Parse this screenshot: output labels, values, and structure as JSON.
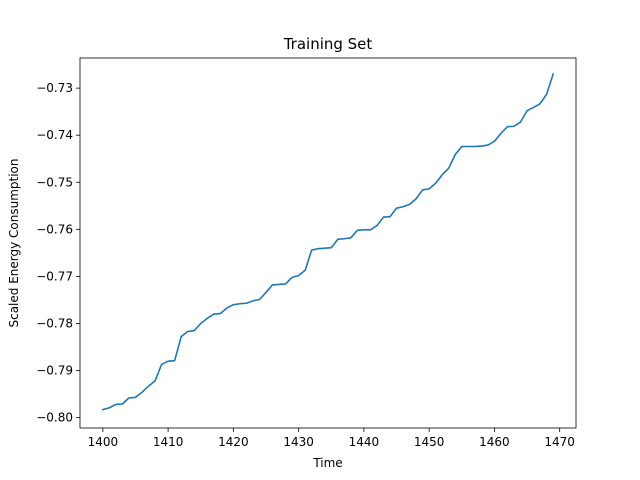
{
  "chart_data": {
    "type": "line",
    "title": "Training Set",
    "xlabel": "Time",
    "ylabel": "Scaled Energy Consumption",
    "xlim": [
      1396.5,
      1472.5
    ],
    "ylim": [
      -0.8022,
      -0.7236
    ],
    "xticks": [
      1400,
      1410,
      1420,
      1430,
      1440,
      1450,
      1460,
      1470
    ],
    "yticks": [
      -0.8,
      -0.79,
      -0.78,
      -0.77,
      -0.76,
      -0.75,
      -0.74,
      -0.73
    ],
    "xtick_labels": [
      "1400",
      "1410",
      "1420",
      "1430",
      "1440",
      "1450",
      "1460",
      "1470"
    ],
    "ytick_labels": [
      "−0.80",
      "−0.79",
      "−0.78",
      "−0.77",
      "−0.76",
      "−0.75",
      "−0.74",
      "−0.73"
    ],
    "grid": false,
    "series": [
      {
        "color": "#1f77b4",
        "x": [
          1400,
          1401,
          1402,
          1403,
          1404,
          1405,
          1406,
          1407,
          1408,
          1409,
          1410,
          1411,
          1412,
          1413,
          1414,
          1415,
          1416,
          1417,
          1418,
          1419,
          1420,
          1421,
          1422,
          1423,
          1424,
          1425,
          1426,
          1427,
          1428,
          1429,
          1430,
          1431,
          1432,
          1433,
          1434,
          1435,
          1436,
          1437,
          1438,
          1439,
          1440,
          1441,
          1442,
          1443,
          1444,
          1445,
          1446,
          1447,
          1448,
          1449,
          1450,
          1451,
          1452,
          1453,
          1454,
          1455,
          1456,
          1457,
          1458,
          1459,
          1460,
          1461,
          1462,
          1463,
          1464,
          1465,
          1466,
          1467,
          1468,
          1469
        ],
        "y": [
          -0.7983,
          -0.7979,
          -0.7972,
          -0.7971,
          -0.7958,
          -0.7957,
          -0.7946,
          -0.7933,
          -0.7922,
          -0.7887,
          -0.788,
          -0.7879,
          -0.7828,
          -0.7817,
          -0.7815,
          -0.78,
          -0.7789,
          -0.778,
          -0.7779,
          -0.7767,
          -0.776,
          -0.7758,
          -0.7757,
          -0.7752,
          -0.7749,
          -0.7734,
          -0.7718,
          -0.7717,
          -0.7716,
          -0.7702,
          -0.7698,
          -0.7687,
          -0.7644,
          -0.7641,
          -0.764,
          -0.7639,
          -0.7621,
          -0.762,
          -0.7618,
          -0.7602,
          -0.7601,
          -0.7601,
          -0.7592,
          -0.7574,
          -0.7573,
          -0.7555,
          -0.7552,
          -0.7547,
          -0.7535,
          -0.7516,
          -0.7514,
          -0.7502,
          -0.7484,
          -0.747,
          -0.7441,
          -0.7424,
          -0.7424,
          -0.7424,
          -0.7423,
          -0.7421,
          -0.7413,
          -0.7396,
          -0.7382,
          -0.7381,
          -0.7372,
          -0.7348,
          -0.7341,
          -0.7333,
          -0.7313,
          -0.727
        ]
      }
    ]
  }
}
